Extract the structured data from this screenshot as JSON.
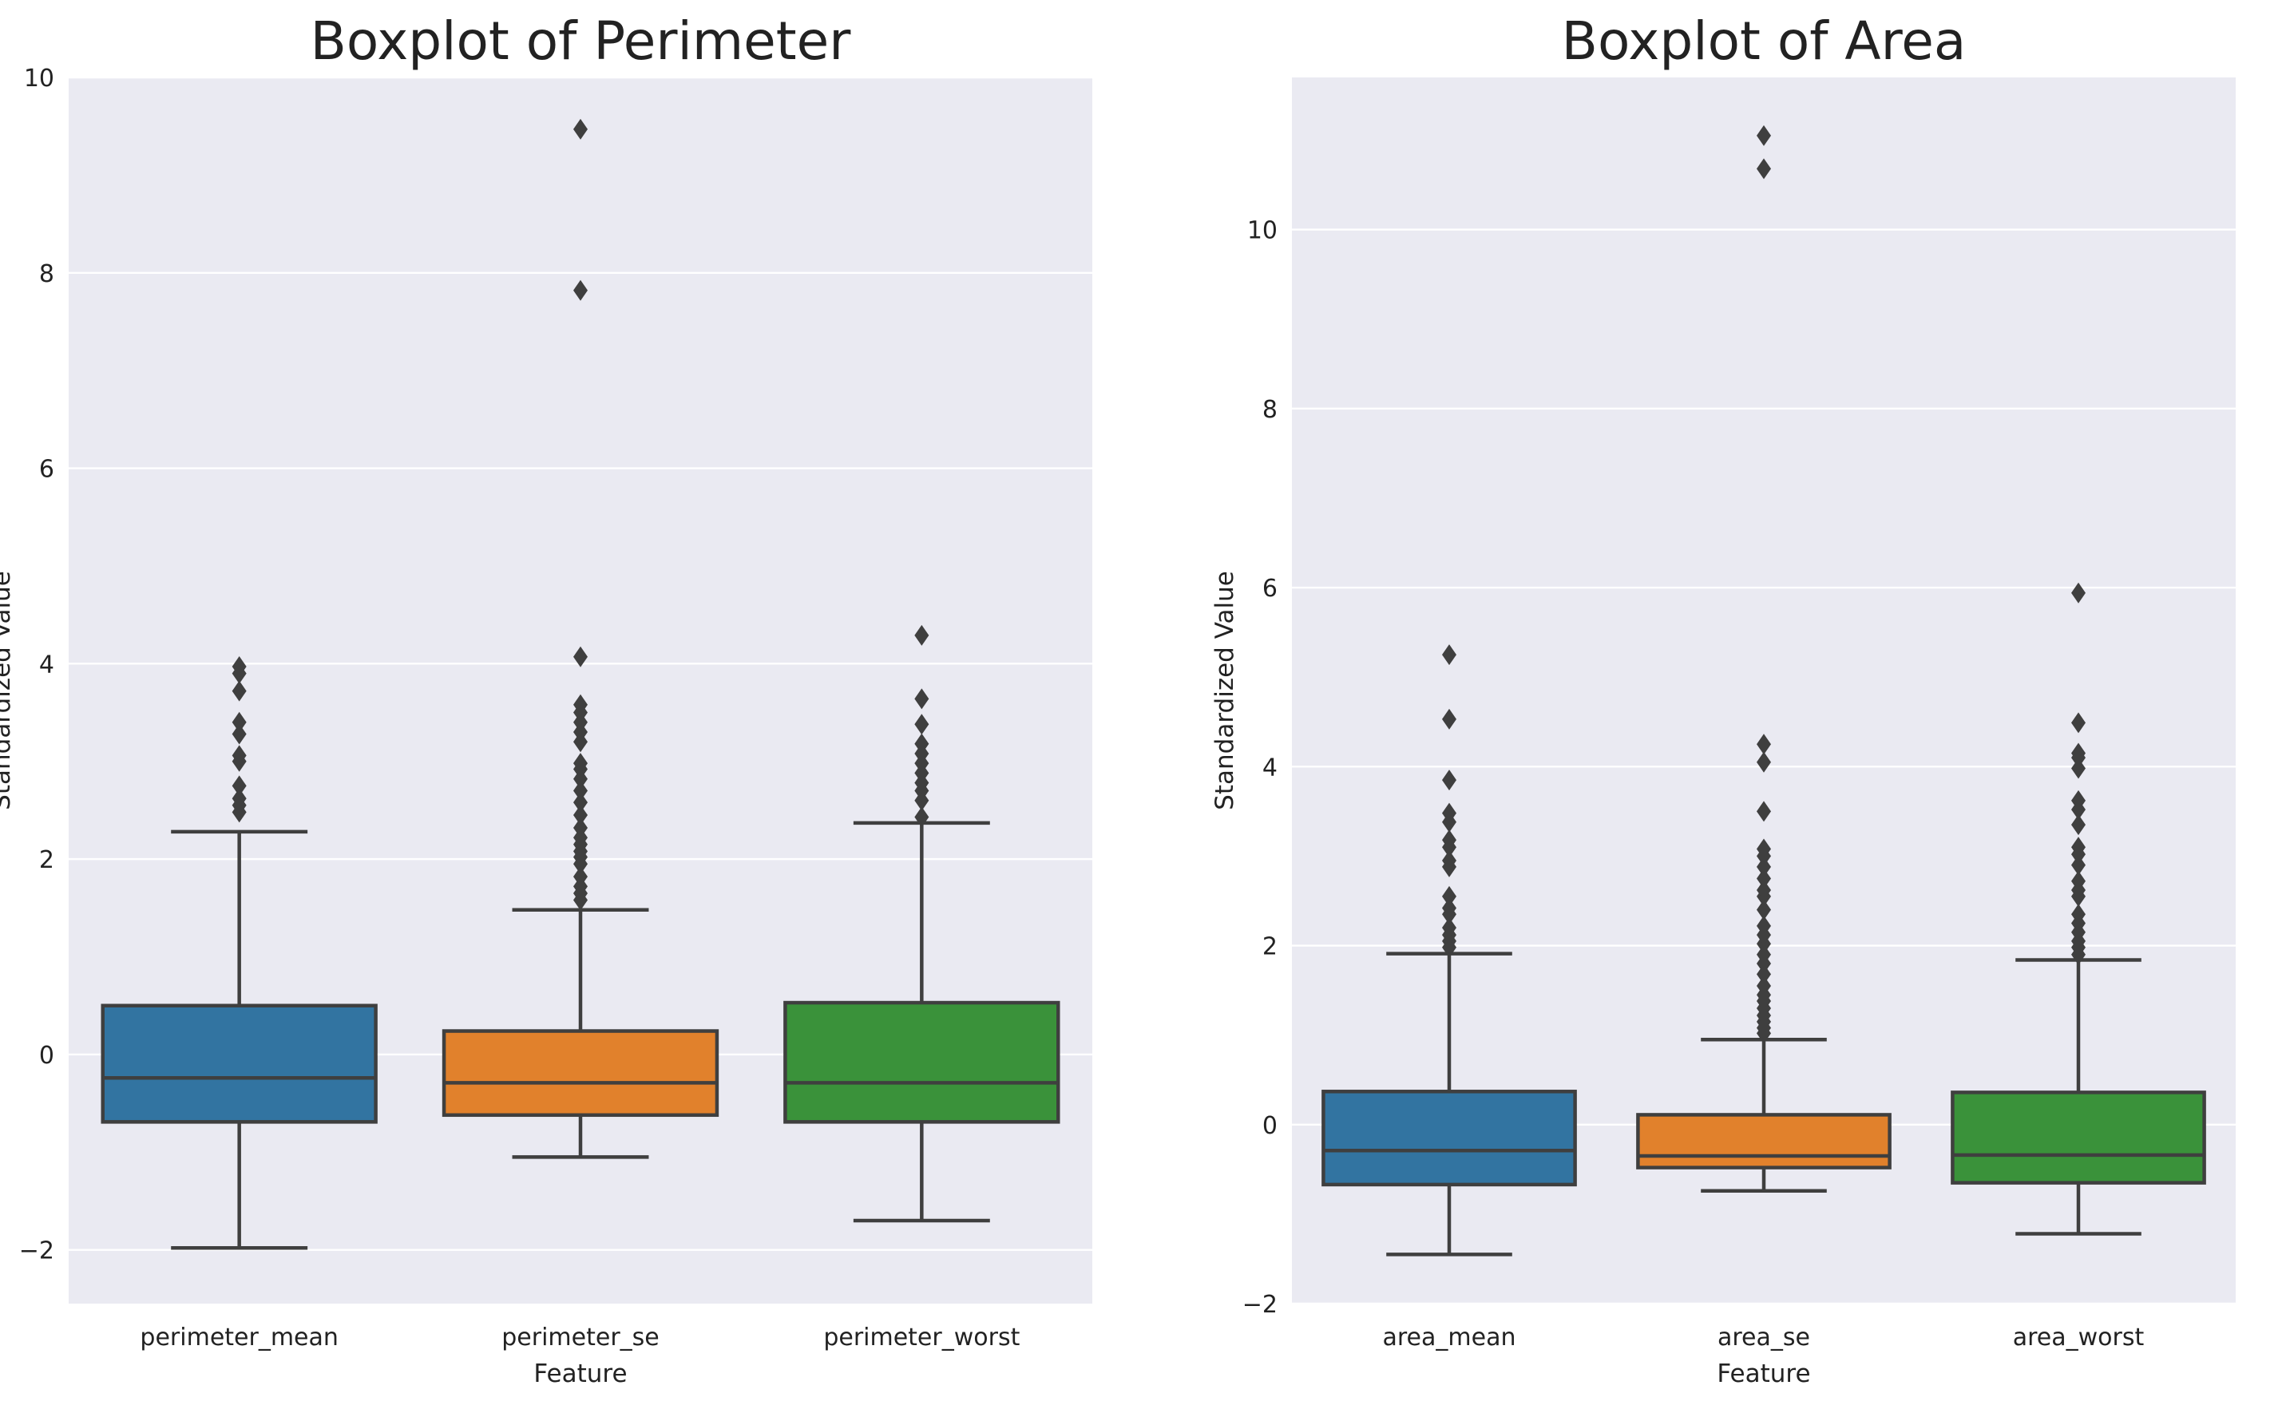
{
  "colors": {
    "panel_background": "#EAEAF2",
    "grid": "#FFFFFF",
    "box_edge": "#3F3F3F",
    "series": [
      "#3274A1",
      "#E1812C",
      "#3A923A"
    ]
  },
  "chart_data": [
    {
      "type": "boxplot",
      "title": "Boxplot of Perimeter",
      "xlabel": "Feature",
      "ylabel": "Standardized Value",
      "ylim": [
        -2.55,
        10.0
      ],
      "yticks": [
        -2,
        0,
        2,
        4,
        6,
        8,
        10
      ],
      "ytick_labels": [
        "−2",
        "0",
        "2",
        "4",
        "6",
        "8",
        "10"
      ],
      "grid": true,
      "categories": [
        "perimeter_mean",
        "perimeter_se",
        "perimeter_worst"
      ],
      "boxes": [
        {
          "whisker_low": -1.98,
          "q1": -0.69,
          "median": -0.24,
          "q3": 0.5,
          "whisker_high": 2.28,
          "outliers": [
            2.48,
            2.55,
            2.62,
            2.75,
            3.0,
            3.06,
            3.28,
            3.4,
            3.72,
            3.9,
            3.97
          ]
        },
        {
          "whisker_low": -1.05,
          "q1": -0.62,
          "median": -0.29,
          "q3": 0.24,
          "whisker_high": 1.48,
          "outliers": [
            1.58,
            1.65,
            1.72,
            1.82,
            1.95,
            2.02,
            2.08,
            2.15,
            2.22,
            2.32,
            2.45,
            2.58,
            2.7,
            2.82,
            2.92,
            2.98,
            3.2,
            3.3,
            3.4,
            3.5,
            3.58,
            4.07,
            7.82,
            9.47
          ]
        },
        {
          "whisker_low": -1.7,
          "q1": -0.69,
          "median": -0.29,
          "q3": 0.53,
          "whisker_high": 2.37,
          "outliers": [
            2.43,
            2.6,
            2.7,
            2.78,
            2.88,
            2.98,
            3.08,
            3.18,
            3.38,
            3.64,
            4.29
          ]
        }
      ]
    },
    {
      "type": "boxplot",
      "title": "Boxplot of Area",
      "xlabel": "Feature",
      "ylabel": "Standardized Value",
      "ylim": [
        -2.0,
        11.7
      ],
      "yticks": [
        -2,
        0,
        2,
        4,
        6,
        8,
        10
      ],
      "ytick_labels": [
        "−2",
        "0",
        "2",
        "4",
        "6",
        "8",
        "10"
      ],
      "grid": true,
      "categories": [
        "area_mean",
        "area_se",
        "area_worst"
      ],
      "boxes": [
        {
          "whisker_low": -1.45,
          "q1": -0.67,
          "median": -0.29,
          "q3": 0.37,
          "whisker_high": 1.91,
          "outliers": [
            1.98,
            2.05,
            2.12,
            2.2,
            2.35,
            2.42,
            2.55,
            2.88,
            2.95,
            3.1,
            3.18,
            3.38,
            3.48,
            3.85,
            4.53,
            5.25
          ]
        },
        {
          "whisker_low": -0.74,
          "q1": -0.48,
          "median": -0.35,
          "q3": 0.11,
          "whisker_high": 0.95,
          "outliers": [
            1.02,
            1.08,
            1.15,
            1.22,
            1.3,
            1.38,
            1.45,
            1.55,
            1.68,
            1.8,
            1.9,
            2.02,
            2.12,
            2.22,
            2.4,
            2.55,
            2.62,
            2.75,
            2.88,
            3.0,
            3.08,
            3.5,
            4.05,
            4.25,
            10.68,
            11.05
          ]
        },
        {
          "whisker_low": -1.22,
          "q1": -0.65,
          "median": -0.34,
          "q3": 0.36,
          "whisker_high": 1.84,
          "outliers": [
            1.9,
            1.98,
            2.05,
            2.15,
            2.25,
            2.35,
            2.55,
            2.62,
            2.72,
            2.9,
            3.02,
            3.1,
            3.35,
            3.52,
            3.62,
            3.98,
            4.1,
            4.15,
            4.49,
            5.94
          ]
        }
      ]
    }
  ]
}
